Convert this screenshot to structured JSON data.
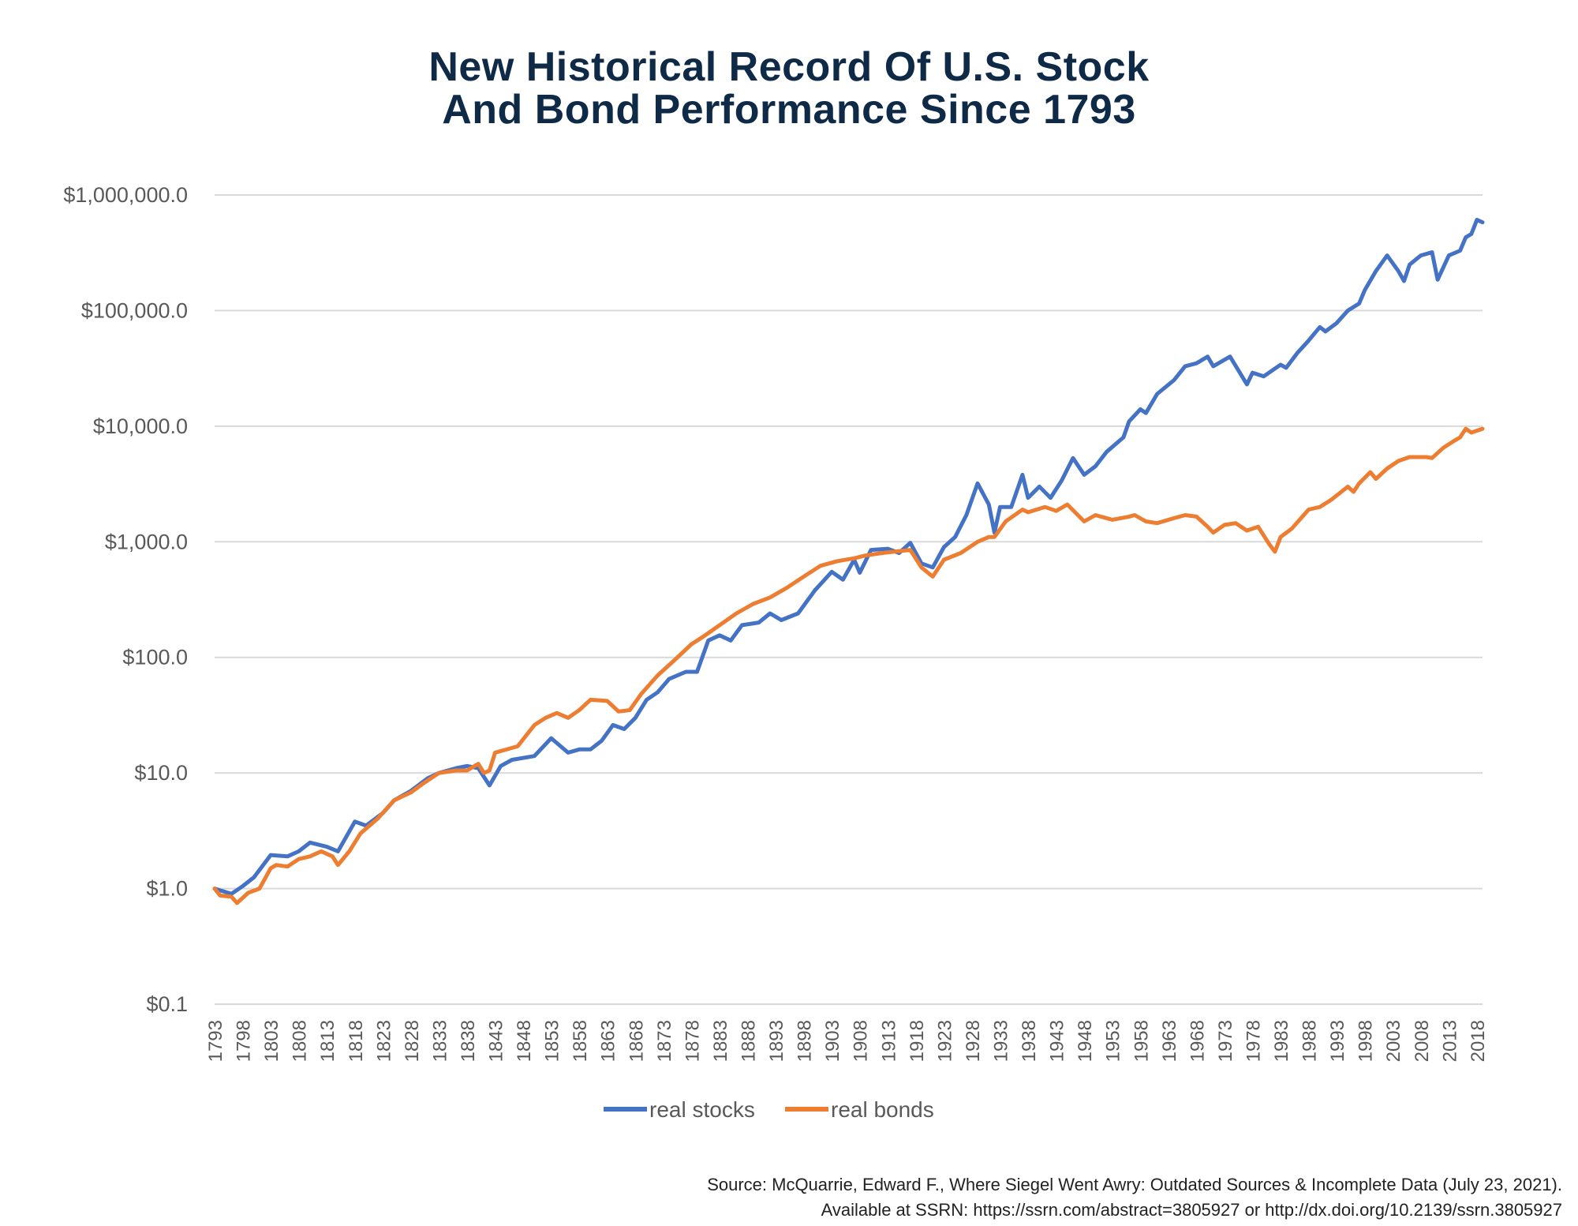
{
  "chart_data": {
    "type": "line",
    "title": "New Historical Record Of U.S. Stock And Bond Performance Since 1793",
    "title_lines": [
      "New Historical Record Of U.S. Stock",
      "And Bond Performance Since 1793"
    ],
    "xlabel": "",
    "ylabel": "",
    "y_scale": "log",
    "ylim": [
      0.1,
      1000000
    ],
    "xlim": [
      1793,
      2019
    ],
    "y_ticks": [
      {
        "value": 1000000,
        "label": "$1,000,000.0"
      },
      {
        "value": 100000,
        "label": "$100,000.0"
      },
      {
        "value": 10000,
        "label": "$10,000.0"
      },
      {
        "value": 1000,
        "label": "$1,000.0"
      },
      {
        "value": 100,
        "label": "$100.0"
      },
      {
        "value": 10,
        "label": "$10.0"
      },
      {
        "value": 1,
        "label": "$1.0"
      },
      {
        "value": 0.1,
        "label": "$0.1"
      }
    ],
    "x_ticks": [
      "1793",
      "1798",
      "1803",
      "1808",
      "1813",
      "1818",
      "1823",
      "1828",
      "1833",
      "1838",
      "1843",
      "1848",
      "1853",
      "1858",
      "1863",
      "1868",
      "1873",
      "1878",
      "1883",
      "1888",
      "1893",
      "1898",
      "1903",
      "1908",
      "1913",
      "1918",
      "1923",
      "1928",
      "1933",
      "1938",
      "1943",
      "1948",
      "1953",
      "1958",
      "1963",
      "1968",
      "1973",
      "1978",
      "1983",
      "1988",
      "1993",
      "1998",
      "2003",
      "2008",
      "2013",
      "2018"
    ],
    "grid": "horizontal",
    "legend_placement": "bottom",
    "series": [
      {
        "name": "real stocks",
        "color": "#4472C4",
        "points": [
          [
            1793,
            1.0
          ],
          [
            1796,
            0.9
          ],
          [
            1798,
            1.05
          ],
          [
            1800,
            1.25
          ],
          [
            1803,
            1.95
          ],
          [
            1806,
            1.9
          ],
          [
            1808,
            2.1
          ],
          [
            1810,
            2.5
          ],
          [
            1813,
            2.3
          ],
          [
            1815,
            2.1
          ],
          [
            1818,
            3.8
          ],
          [
            1820,
            3.5
          ],
          [
            1823,
            4.5
          ],
          [
            1825,
            5.8
          ],
          [
            1828,
            7
          ],
          [
            1831,
            9
          ],
          [
            1833,
            10
          ],
          [
            1836,
            11
          ],
          [
            1838,
            11.5
          ],
          [
            1840,
            11
          ],
          [
            1842,
            7.8
          ],
          [
            1844,
            11.5
          ],
          [
            1846,
            13
          ],
          [
            1850,
            14
          ],
          [
            1853,
            20
          ],
          [
            1856,
            15
          ],
          [
            1858,
            16
          ],
          [
            1860,
            16
          ],
          [
            1862,
            19
          ],
          [
            1864,
            26
          ],
          [
            1866,
            24
          ],
          [
            1868,
            30
          ],
          [
            1870,
            43
          ],
          [
            1872,
            50
          ],
          [
            1874,
            65
          ],
          [
            1877,
            75
          ],
          [
            1879,
            75
          ],
          [
            1881,
            140
          ],
          [
            1883,
            155
          ],
          [
            1885,
            140
          ],
          [
            1887,
            190
          ],
          [
            1890,
            200
          ],
          [
            1892,
            240
          ],
          [
            1894,
            210
          ],
          [
            1897,
            240
          ],
          [
            1900,
            380
          ],
          [
            1903,
            550
          ],
          [
            1905,
            470
          ],
          [
            1907,
            700
          ],
          [
            1908,
            540
          ],
          [
            1910,
            850
          ],
          [
            1913,
            870
          ],
          [
            1915,
            800
          ],
          [
            1917,
            980
          ],
          [
            1919,
            650
          ],
          [
            1921,
            600
          ],
          [
            1923,
            900
          ],
          [
            1925,
            1100
          ],
          [
            1927,
            1700
          ],
          [
            1929,
            3200
          ],
          [
            1931,
            2100
          ],
          [
            1932,
            1200
          ],
          [
            1933,
            2000
          ],
          [
            1935,
            2000
          ],
          [
            1937,
            3800
          ],
          [
            1938,
            2400
          ],
          [
            1940,
            3000
          ],
          [
            1942,
            2400
          ],
          [
            1944,
            3400
          ],
          [
            1946,
            5300
          ],
          [
            1948,
            3800
          ],
          [
            1950,
            4500
          ],
          [
            1952,
            6000
          ],
          [
            1955,
            8000
          ],
          [
            1956,
            11000
          ],
          [
            1958,
            14000
          ],
          [
            1959,
            13000
          ],
          [
            1961,
            19000
          ],
          [
            1964,
            25000
          ],
          [
            1966,
            33000
          ],
          [
            1968,
            35000
          ],
          [
            1970,
            40000
          ],
          [
            1971,
            33000
          ],
          [
            1974,
            40000
          ],
          [
            1977,
            23000
          ],
          [
            1978,
            29000
          ],
          [
            1980,
            27000
          ],
          [
            1983,
            34000
          ],
          [
            1984,
            32000
          ],
          [
            1986,
            43000
          ],
          [
            1988,
            55000
          ],
          [
            1990,
            72000
          ],
          [
            1991,
            66000
          ],
          [
            1993,
            78000
          ],
          [
            1995,
            100000
          ],
          [
            1997,
            115000
          ],
          [
            1998,
            150000
          ],
          [
            2000,
            220000
          ],
          [
            2002,
            300000
          ],
          [
            2004,
            220000
          ],
          [
            2005,
            180000
          ],
          [
            2006,
            250000
          ],
          [
            2008,
            300000
          ],
          [
            2010,
            320000
          ],
          [
            2011,
            185000
          ],
          [
            2013,
            300000
          ],
          [
            2015,
            330000
          ],
          [
            2016,
            430000
          ],
          [
            2017,
            460000
          ],
          [
            2018,
            610000
          ],
          [
            2019,
            580000
          ]
        ]
      },
      {
        "name": "real bonds",
        "color": "#ED7D31",
        "points": [
          [
            1793,
            1.0
          ],
          [
            1794,
            0.87
          ],
          [
            1796,
            0.85
          ],
          [
            1797,
            0.75
          ],
          [
            1799,
            0.92
          ],
          [
            1801,
            1.0
          ],
          [
            1803,
            1.5
          ],
          [
            1804,
            1.6
          ],
          [
            1806,
            1.55
          ],
          [
            1808,
            1.8
          ],
          [
            1810,
            1.9
          ],
          [
            1812,
            2.1
          ],
          [
            1814,
            1.9
          ],
          [
            1815,
            1.6
          ],
          [
            1817,
            2.1
          ],
          [
            1819,
            3.0
          ],
          [
            1822,
            4.0
          ],
          [
            1825,
            5.8
          ],
          [
            1828,
            6.8
          ],
          [
            1830,
            8
          ],
          [
            1833,
            10
          ],
          [
            1836,
            10.5
          ],
          [
            1838,
            10.5
          ],
          [
            1840,
            12
          ],
          [
            1841,
            10
          ],
          [
            1842,
            10.5
          ],
          [
            1843,
            15
          ],
          [
            1847,
            17
          ],
          [
            1850,
            26
          ],
          [
            1852,
            30
          ],
          [
            1854,
            33
          ],
          [
            1856,
            30
          ],
          [
            1858,
            35
          ],
          [
            1860,
            43
          ],
          [
            1863,
            42
          ],
          [
            1865,
            34
          ],
          [
            1867,
            35
          ],
          [
            1869,
            48
          ],
          [
            1872,
            70
          ],
          [
            1875,
            95
          ],
          [
            1878,
            130
          ],
          [
            1880,
            150
          ],
          [
            1883,
            190
          ],
          [
            1886,
            240
          ],
          [
            1889,
            290
          ],
          [
            1892,
            330
          ],
          [
            1895,
            400
          ],
          [
            1898,
            500
          ],
          [
            1901,
            620
          ],
          [
            1904,
            680
          ],
          [
            1907,
            720
          ],
          [
            1909,
            760
          ],
          [
            1912,
            800
          ],
          [
            1915,
            830
          ],
          [
            1917,
            850
          ],
          [
            1919,
            600
          ],
          [
            1921,
            500
          ],
          [
            1923,
            700
          ],
          [
            1926,
            800
          ],
          [
            1929,
            1000
          ],
          [
            1931,
            1100
          ],
          [
            1932,
            1100
          ],
          [
            1934,
            1500
          ],
          [
            1937,
            1900
          ],
          [
            1938,
            1800
          ],
          [
            1941,
            2000
          ],
          [
            1943,
            1850
          ],
          [
            1945,
            2100
          ],
          [
            1948,
            1500
          ],
          [
            1950,
            1700
          ],
          [
            1953,
            1550
          ],
          [
            1956,
            1650
          ],
          [
            1957,
            1700
          ],
          [
            1959,
            1500
          ],
          [
            1961,
            1450
          ],
          [
            1964,
            1600
          ],
          [
            1966,
            1700
          ],
          [
            1968,
            1650
          ],
          [
            1970,
            1350
          ],
          [
            1971,
            1200
          ],
          [
            1973,
            1400
          ],
          [
            1975,
            1450
          ],
          [
            1977,
            1250
          ],
          [
            1979,
            1350
          ],
          [
            1981,
            950
          ],
          [
            1982,
            820
          ],
          [
            1983,
            1100
          ],
          [
            1985,
            1300
          ],
          [
            1988,
            1900
          ],
          [
            1990,
            2000
          ],
          [
            1992,
            2300
          ],
          [
            1995,
            3000
          ],
          [
            1996,
            2700
          ],
          [
            1997,
            3200
          ],
          [
            1999,
            4000
          ],
          [
            2000,
            3500
          ],
          [
            2002,
            4300
          ],
          [
            2004,
            5000
          ],
          [
            2006,
            5400
          ],
          [
            2009,
            5400
          ],
          [
            2010,
            5300
          ],
          [
            2012,
            6500
          ],
          [
            2014,
            7500
          ],
          [
            2015,
            8000
          ],
          [
            2016,
            9500
          ],
          [
            2017,
            8800
          ],
          [
            2019,
            9500
          ]
        ]
      }
    ]
  },
  "source": {
    "line1": "Source: McQuarrie, Edward F., Where Siegel Went Awry: Outdated Sources & Incomplete Data (July 23, 2021).",
    "line2": "Available at SSRN: https://ssrn.com/abstract=3805927 or http://dx.doi.org/10.2139/ssrn.3805927"
  }
}
